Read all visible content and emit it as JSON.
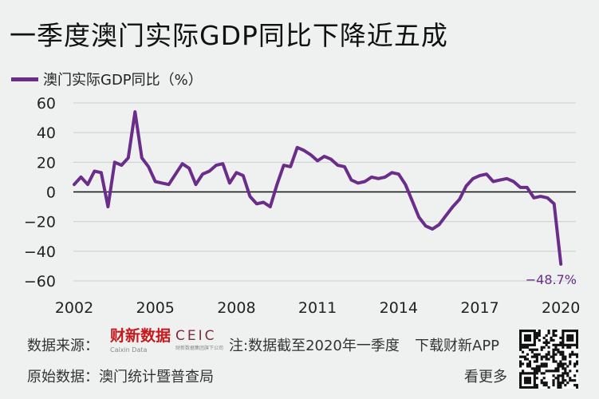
{
  "header": {
    "title": "一季度澳门实际GDP同比下降近五成"
  },
  "footer": {
    "source_label": "数据来源：",
    "source_caixin": "财新数据",
    "source_caixin_sub": "Caixin Data",
    "source_ceic": "CEIC",
    "source_ceic_sub": "财新数据集团旗下公司",
    "note": "注:数据截至2020年一季度",
    "original_label": "原始数据：澳门统计暨普查局",
    "download": "下载财新APP",
    "more": "看更多"
  },
  "colors": {
    "line": "#6b2d8a",
    "annotation": "#6b2d8a",
    "background": "#eef1f0"
  },
  "chart_data": {
    "type": "line",
    "title": "",
    "ylabel": "",
    "ylim": [
      -60,
      60
    ],
    "yticks": [
      "60",
      "40",
      "20",
      "0",
      "−20",
      "−40",
      "−60"
    ],
    "xticks": [
      "2002",
      "2005",
      "2008",
      "2011",
      "2014",
      "2017",
      "2020"
    ],
    "grid": true,
    "legend": "top-left",
    "series": [
      {
        "name": "澳门实际GDP同比（%）",
        "x": [
          "2002Q1",
          "2002Q2",
          "2002Q3",
          "2002Q4",
          "2003Q1",
          "2003Q2",
          "2003Q3",
          "2003Q4",
          "2004Q1",
          "2004Q2",
          "2004Q3",
          "2004Q4",
          "2005Q1",
          "2005Q2",
          "2005Q3",
          "2005Q4",
          "2006Q1",
          "2006Q2",
          "2006Q3",
          "2006Q4",
          "2007Q1",
          "2007Q2",
          "2007Q3",
          "2007Q4",
          "2008Q1",
          "2008Q2",
          "2008Q3",
          "2008Q4",
          "2009Q1",
          "2009Q2",
          "2009Q3",
          "2009Q4",
          "2010Q1",
          "2010Q2",
          "2010Q3",
          "2010Q4",
          "2011Q1",
          "2011Q2",
          "2011Q3",
          "2011Q4",
          "2012Q1",
          "2012Q2",
          "2012Q3",
          "2012Q4",
          "2013Q1",
          "2013Q2",
          "2013Q3",
          "2013Q4",
          "2014Q1",
          "2014Q2",
          "2014Q3",
          "2014Q4",
          "2015Q1",
          "2015Q2",
          "2015Q3",
          "2015Q4",
          "2016Q1",
          "2016Q2",
          "2016Q3",
          "2016Q4",
          "2017Q1",
          "2017Q2",
          "2017Q3",
          "2017Q4",
          "2018Q1",
          "2018Q2",
          "2018Q3",
          "2018Q4",
          "2019Q1",
          "2019Q2",
          "2019Q3",
          "2019Q4",
          "2020Q1"
        ],
        "values": [
          5,
          10,
          5,
          14,
          13,
          -10,
          20,
          18,
          23,
          54,
          23,
          17,
          7,
          6,
          5,
          12,
          19,
          16,
          5,
          12,
          14,
          18,
          19,
          6,
          13,
          11,
          -3,
          -8,
          -7,
          -10,
          5,
          18,
          17,
          30,
          28,
          25,
          21,
          24,
          22,
          18,
          17,
          8,
          6,
          7,
          10,
          9,
          10,
          13,
          12,
          5,
          -6,
          -17,
          -23,
          -25,
          -22,
          -16,
          -10,
          -5,
          4,
          9,
          11,
          12,
          7,
          8,
          9,
          7,
          3,
          3,
          -4,
          -3,
          -4,
          -8,
          -48.7
        ]
      }
    ],
    "annotations": [
      {
        "text": "−48.7%",
        "x": "2020Q1",
        "y": -48.7
      }
    ]
  }
}
